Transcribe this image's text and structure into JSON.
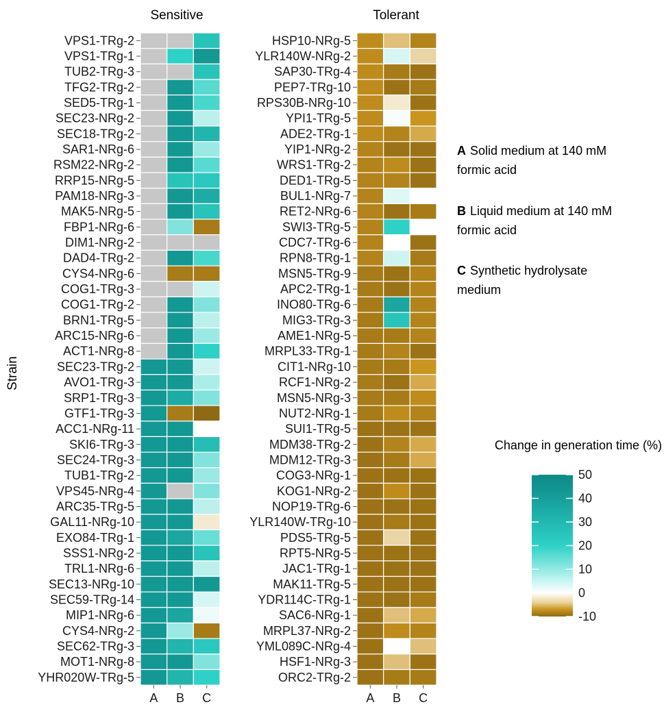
{
  "chart_data": [
    {
      "type": "heatmap",
      "title": "Sensitive",
      "ylabel": "Strain",
      "columns": [
        "A",
        "B",
        "C"
      ],
      "rows": [
        "VPS1-TRg-2",
        "VPS1-TRg-1",
        "TUB2-TRg-3",
        "TFG2-TRg-2",
        "SED5-TRg-1",
        "SEC23-NRg-2",
        "SEC18-TRg-2",
        "SAR1-NRg-6",
        "RSM22-NRg-2",
        "RRP15-NRg-5",
        "PAM18-NRg-3",
        "MAK5-NRg-5",
        "FBP1-NRg-6",
        "DIM1-NRg-2",
        "DAD4-TRg-2",
        "CYS4-NRg-6",
        "COG1-TRg-3",
        "COG1-TRg-2",
        "BRN1-TRg-5",
        "ARC15-NRg-6",
        "ACT1-NRg-8",
        "SEC23-TRg-2",
        "AVO1-TRg-3",
        "SRP1-TRg-3",
        "GTF1-TRg-3",
        "ACC1-NRg-11",
        "SKI6-TRg-3",
        "SEC24-TRg-3",
        "TUB1-TRg-2",
        "VPS45-NRg-4",
        "ARC35-TRg-5",
        "GAL11-NRg-10",
        "EXO84-TRg-1",
        "SSS1-NRg-2",
        "TRL1-NRg-6",
        "SEC13-NRg-10",
        "SEC59-TRg-14",
        "MIP1-NRg-6",
        "CYS4-NRg-2",
        "SEC62-TRg-3",
        "MOT1-NRg-8",
        "YHR020W-TRg-5"
      ],
      "values": [
        [
          null,
          null,
          30
        ],
        [
          null,
          25,
          45
        ],
        [
          null,
          null,
          30
        ],
        [
          null,
          45,
          20
        ],
        [
          null,
          45,
          22
        ],
        [
          null,
          45,
          8
        ],
        [
          null,
          45,
          35
        ],
        [
          null,
          45,
          12
        ],
        [
          null,
          45,
          20
        ],
        [
          null,
          30,
          28
        ],
        [
          null,
          45,
          38
        ],
        [
          null,
          45,
          30
        ],
        [
          null,
          15,
          -8
        ],
        [
          null,
          null,
          null
        ],
        [
          null,
          45,
          22
        ],
        [
          null,
          -8,
          -8
        ],
        [
          null,
          null,
          6
        ],
        [
          null,
          45,
          15
        ],
        [
          null,
          45,
          8
        ],
        [
          null,
          45,
          12
        ],
        [
          null,
          45,
          25
        ],
        [
          45,
          45,
          6
        ],
        [
          45,
          45,
          10
        ],
        [
          45,
          38,
          15
        ],
        [
          45,
          -8,
          -10
        ],
        [
          45,
          45,
          0
        ],
        [
          45,
          45,
          32
        ],
        [
          45,
          45,
          15
        ],
        [
          45,
          45,
          12
        ],
        [
          45,
          null,
          15
        ],
        [
          45,
          45,
          8
        ],
        [
          45,
          45,
          -1
        ],
        [
          45,
          40,
          18
        ],
        [
          45,
          45,
          30
        ],
        [
          45,
          45,
          8
        ],
        [
          45,
          45,
          45
        ],
        [
          45,
          45,
          5
        ],
        [
          45,
          40,
          2
        ],
        [
          45,
          12,
          -8
        ],
        [
          45,
          35,
          28
        ],
        [
          45,
          45,
          15
        ],
        [
          45,
          35,
          25
        ]
      ]
    },
    {
      "type": "heatmap",
      "title": "Tolerant",
      "columns": [
        "A",
        "B",
        "C"
      ],
      "rows": [
        "HSP10-NRg-5",
        "YLR140W-NRg-2",
        "SAP30-TRg-4",
        "PEP7-TRg-10",
        "RPS30B-NRg-10",
        "YPI1-TRg-5",
        "ADE2-TRg-1",
        "YIP1-NRg-2",
        "WRS1-TRg-2",
        "DED1-TRg-5",
        "BUL1-NRg-7",
        "RET2-NRg-6",
        "SWI3-TRg-5",
        "CDC7-TRg-6",
        "RPN8-TRg-1",
        "MSN5-TRg-9",
        "APC2-TRg-1",
        "INO80-TRg-6",
        "MIG3-TRg-3",
        "AME1-NRg-5",
        "MRPL33-TRg-1",
        "CIT1-NRg-10",
        "RCF1-NRg-2",
        "MSN5-NRg-3",
        "NUT2-NRg-1",
        "SUI1-TRg-5",
        "MDM38-TRg-2",
        "MDM12-TRg-3",
        "COG3-NRg-1",
        "KOG1-NRg-2",
        "NOP19-TRg-6",
        "YLR140W-TRg-10",
        "PDS5-TRg-5",
        "RPT5-NRg-5",
        "JAC1-TRg-1",
        "MAK11-TRg-5",
        "YDR114C-TRg-1",
        "SAC6-NRg-1",
        "MRPL37-NRg-2",
        "YML089C-NRg-4",
        "HSF1-NRg-3",
        "ORC2-TRg-2"
      ],
      "values": [
        [
          -6,
          -3,
          -7
        ],
        [
          -6,
          5,
          -2
        ],
        [
          -6,
          -8,
          -9
        ],
        [
          -6,
          -9,
          -8
        ],
        [
          -6,
          -1,
          -9
        ],
        [
          -6,
          1,
          -5
        ],
        [
          -6,
          -7,
          -4
        ],
        [
          -7,
          -9,
          -9
        ],
        [
          -7,
          -6,
          -9
        ],
        [
          -7,
          -7,
          -9
        ],
        [
          -7,
          4,
          0
        ],
        [
          -7,
          -9,
          -8
        ],
        [
          -7,
          25,
          0
        ],
        [
          -7,
          0,
          -9
        ],
        [
          -7,
          6,
          -8
        ],
        [
          -8,
          -9,
          -7
        ],
        [
          -8,
          -9,
          -7
        ],
        [
          -8,
          40,
          -7
        ],
        [
          -8,
          30,
          -7
        ],
        [
          -8,
          -8,
          -7
        ],
        [
          -8,
          -7,
          -9
        ],
        [
          -8,
          -8,
          -5
        ],
        [
          -8,
          -9,
          -4
        ],
        [
          -8,
          -8,
          -6
        ],
        [
          -8,
          -6,
          -7
        ],
        [
          -9,
          -9,
          -9
        ],
        [
          -9,
          -7,
          -4
        ],
        [
          -9,
          -8,
          -4
        ],
        [
          -9,
          -9,
          -9
        ],
        [
          -9,
          -6,
          -9
        ],
        [
          -9,
          -9,
          -9
        ],
        [
          -9,
          -8,
          -9
        ],
        [
          -9,
          -2,
          -9
        ],
        [
          -9,
          -9,
          -9
        ],
        [
          -9,
          -9,
          -9
        ],
        [
          -9,
          -9,
          -9
        ],
        [
          -9,
          -9,
          -8
        ],
        [
          -9,
          -3,
          -4
        ],
        [
          -9,
          -6,
          -7
        ],
        [
          -9,
          0,
          -3
        ],
        [
          -9,
          -3,
          -9
        ],
        [
          -9,
          -8,
          -8
        ]
      ]
    }
  ],
  "legend": {
    "title": "Change in generation time (%)",
    "ticks": [
      "50",
      "40",
      "30",
      "20",
      "10",
      "0",
      "-10"
    ],
    "range": [
      -10,
      50
    ],
    "colors": {
      "min": "#8f6a14",
      "low": "#c9951f",
      "zero": "#ffffff",
      "mid": "#2ed1c6",
      "max": "#0e8a87",
      "missing": "#c7c7c7"
    }
  },
  "descriptions": [
    {
      "key": "A",
      "text_1": "Solid medium at 140 mM",
      "text_2": "formic acid"
    },
    {
      "key": "B",
      "text_1": "Liquid medium at 140 mM",
      "text_2": "formic acid"
    },
    {
      "key": "C",
      "text_1": "Synthetic hydrolysate",
      "text_2": "medium"
    }
  ]
}
